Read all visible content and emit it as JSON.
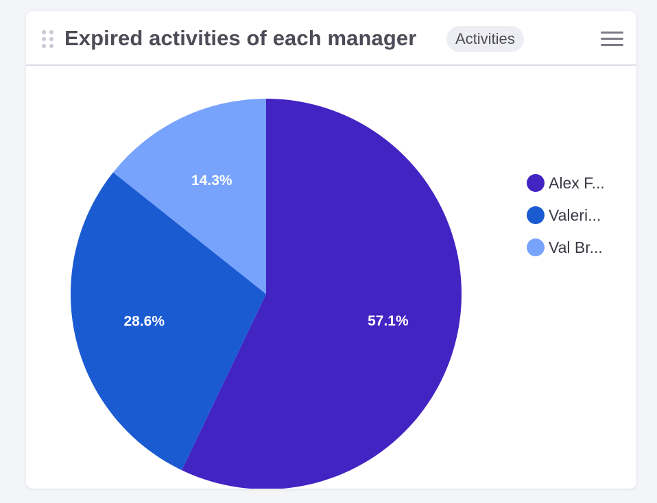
{
  "widget": {
    "title": "Expired activities of each manager",
    "badge": "Activities",
    "drag_handle_icon": "drag-dots-icon",
    "menu_icon": "hamburger-menu-icon"
  },
  "chart_data": {
    "type": "pie",
    "title": "Expired activities of each manager",
    "slices": [
      {
        "label": "Alex F...",
        "percent": 57.1,
        "percent_label": "57.1%",
        "color": "#4224c3"
      },
      {
        "label": "Valeri...",
        "percent": 28.6,
        "percent_label": "28.6%",
        "color": "#1b5bd2"
      },
      {
        "label": "Val Br...",
        "percent": 14.3,
        "percent_label": "14.3%",
        "color": "#78a3fd"
      }
    ],
    "start_angle_deg": 0,
    "direction": "clockwise",
    "legend_position": "right"
  }
}
